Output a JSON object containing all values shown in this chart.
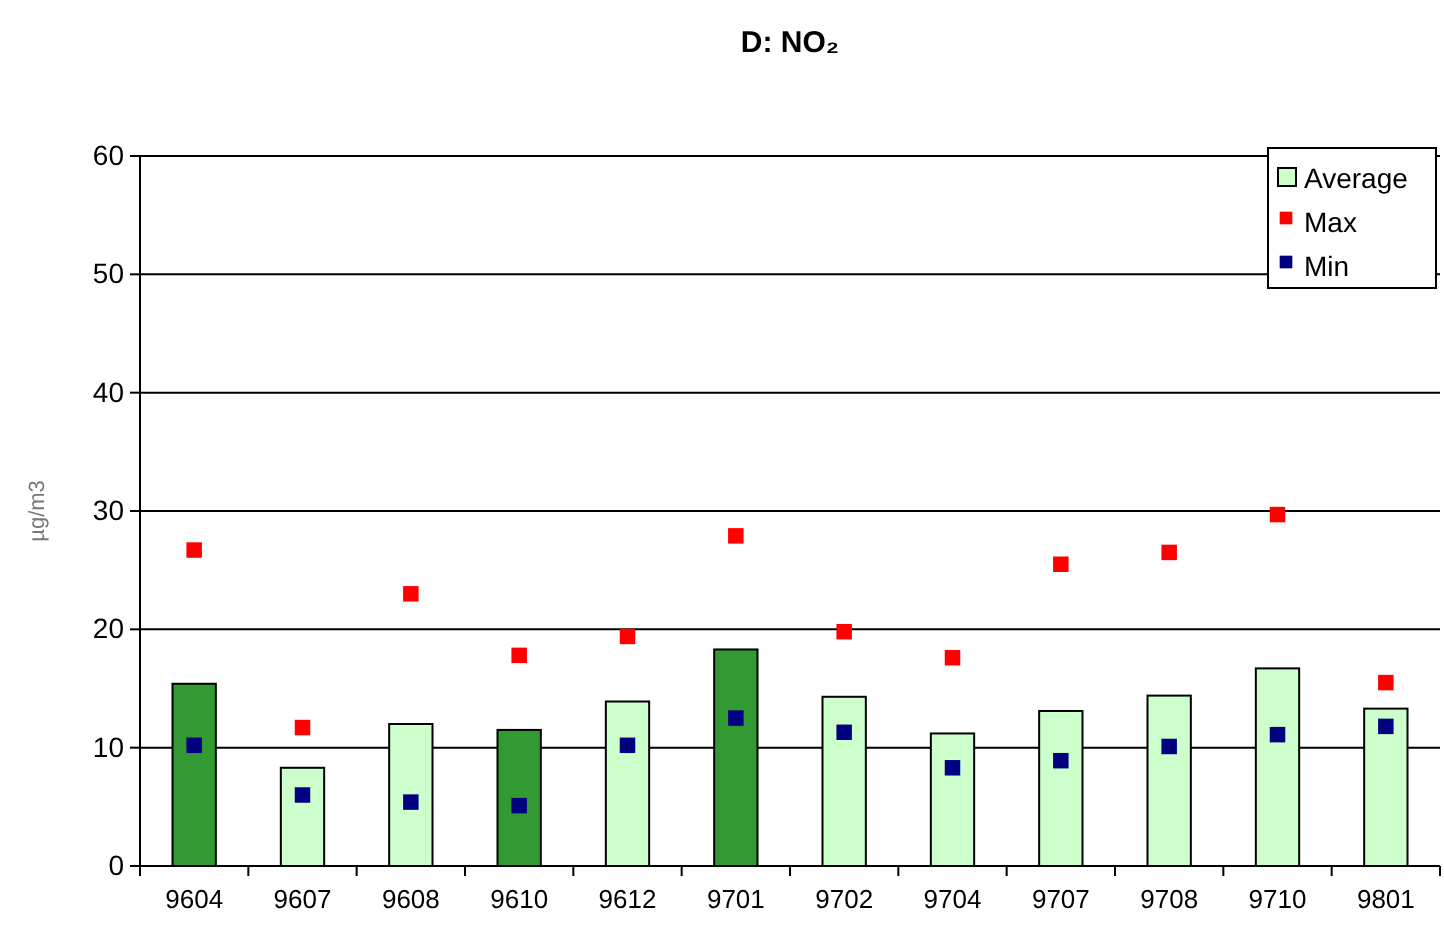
{
  "chart_data": {
    "type": "bar",
    "title": "D: NO₂",
    "ylabel": "µg/m3",
    "categories": [
      "9604",
      "9607",
      "9608",
      "9610",
      "9612",
      "9701",
      "9702",
      "9704",
      "9707",
      "9708",
      "9710",
      "9801"
    ],
    "series": [
      {
        "name": "Average",
        "color": "#ccffcc",
        "colors": [
          "#339933",
          "#ccffcc",
          "#ccffcc",
          "#339933",
          "#ccffcc",
          "#339933",
          "#ccffcc",
          "#ccffcc",
          "#ccffcc",
          "#ccffcc",
          "#ccffcc",
          "#ccffcc"
        ],
        "values": [
          15.4,
          8.3,
          12.0,
          11.5,
          13.9,
          18.3,
          14.3,
          11.2,
          13.1,
          14.4,
          16.7,
          13.3
        ]
      },
      {
        "name": "Max",
        "type": "scatter",
        "color": "#ff0000",
        "values": [
          26.7,
          11.7,
          23.0,
          17.8,
          19.4,
          27.9,
          19.8,
          17.6,
          25.5,
          26.5,
          29.7,
          15.5
        ]
      },
      {
        "name": "Min",
        "type": "scatter",
        "color": "#000080",
        "values": [
          10.2,
          6.0,
          5.4,
          5.1,
          10.2,
          12.5,
          11.3,
          8.3,
          8.9,
          10.1,
          11.1,
          11.8
        ]
      }
    ],
    "ylim": [
      0,
      60
    ],
    "yticks": [
      0,
      10,
      20,
      30,
      40,
      50,
      60
    ],
    "grid": "y",
    "legend": "top right",
    "marker": "square"
  }
}
